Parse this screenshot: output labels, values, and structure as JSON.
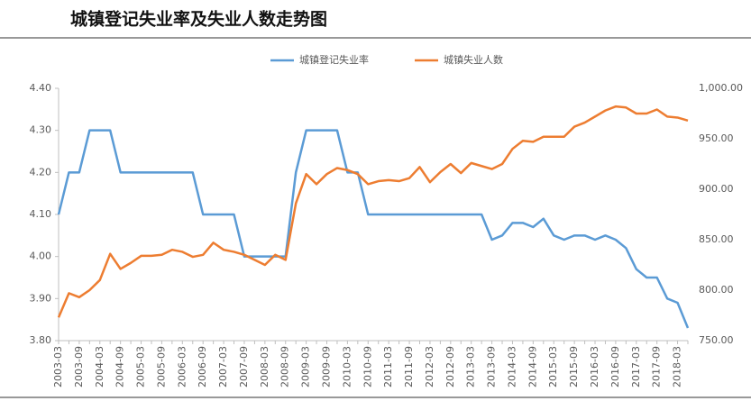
{
  "chart_data": {
    "type": "line",
    "title": "城镇登记失业率及失业人数走势图",
    "categories": [
      "2003-03",
      null,
      "2003-09",
      null,
      "2004-03",
      null,
      "2004-09",
      null,
      "2005-03",
      null,
      "2005-09",
      null,
      "2006-03",
      null,
      "2006-09",
      null,
      "2007-03",
      null,
      "2007-09",
      null,
      "2008-03",
      null,
      "2008-09",
      null,
      "2009-03",
      null,
      "2009-09",
      null,
      "2010-03",
      null,
      "2010-09",
      null,
      "2011-03",
      null,
      "2011-09",
      null,
      "2012-03",
      null,
      "2012-09",
      null,
      "2013-03",
      null,
      "2013-09",
      null,
      "2014-03",
      null,
      "2014-09",
      null,
      "2015-03",
      null,
      "2015-09",
      null,
      "2016-03",
      null,
      "2016-09",
      null,
      "2017-03",
      null,
      "2017-09",
      null,
      "2018-03",
      null
    ],
    "series": [
      {
        "name": "城镇登记失业率",
        "color": "#5b9bd5",
        "axis": "y",
        "values": [
          4.1,
          4.2,
          4.2,
          4.3,
          4.3,
          4.3,
          4.2,
          4.2,
          4.2,
          4.2,
          4.2,
          4.2,
          4.2,
          4.2,
          4.1,
          4.1,
          4.1,
          4.1,
          4.0,
          4.0,
          4.0,
          4.0,
          4.0,
          4.2,
          4.3,
          4.3,
          4.3,
          4.3,
          4.2,
          4.2,
          4.1,
          4.1,
          4.1,
          4.1,
          4.1,
          4.1,
          4.1,
          4.1,
          4.1,
          4.1,
          4.1,
          4.1,
          4.04,
          4.05,
          4.08,
          4.08,
          4.07,
          4.09,
          4.05,
          4.04,
          4.05,
          4.05,
          4.04,
          4.05,
          4.04,
          4.02,
          3.97,
          3.95,
          3.95,
          3.9,
          3.89,
          3.83
        ]
      },
      {
        "name": "城镇失业人数",
        "color": "#ed7d31",
        "axis": "y2",
        "values": [
          773,
          797,
          793,
          800,
          810,
          836,
          821,
          827,
          834,
          834,
          835,
          840,
          838,
          833,
          835,
          847,
          840,
          838,
          835,
          830,
          825,
          835,
          830,
          886,
          915,
          905,
          915,
          921,
          919,
          915,
          905,
          908,
          909,
          908,
          911,
          922,
          907,
          917,
          925,
          916,
          926,
          923,
          920,
          925,
          940,
          948,
          947,
          952,
          952,
          952,
          962,
          966,
          972,
          978,
          982,
          981,
          975,
          975,
          979,
          972,
          971,
          968
        ]
      }
    ],
    "ylim": [
      3.8,
      4.4
    ],
    "yticks": [
      {
        "value": 3.8,
        "label": "3.80"
      },
      {
        "value": 3.9,
        "label": "3.90"
      },
      {
        "value": 4.0,
        "label": "4.00"
      },
      {
        "value": 4.1,
        "label": "4.10"
      },
      {
        "value": 4.2,
        "label": "4.20"
      },
      {
        "value": 4.3,
        "label": "4.30"
      },
      {
        "value": 4.4,
        "label": "4.40"
      }
    ],
    "y2lim": [
      750,
      1000
    ],
    "y2ticks": [
      {
        "value": 750,
        "label": "750.00"
      },
      {
        "value": 800,
        "label": "800.00"
      },
      {
        "value": 850,
        "label": "850.00"
      },
      {
        "value": 900,
        "label": "900.00"
      },
      {
        "value": 950,
        "label": "950.00"
      },
      {
        "value": 1000,
        "label": "1,000.00"
      }
    ],
    "legend": "top",
    "grid": false
  }
}
